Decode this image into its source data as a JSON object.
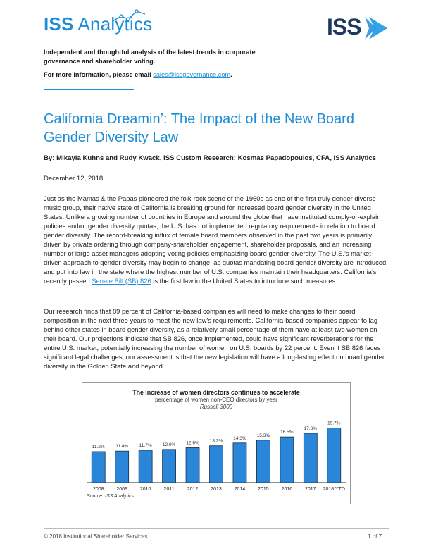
{
  "header": {
    "logo_prefix": "ISS",
    "logo_suffix": " Analytics",
    "brand_mark": "ISS",
    "intro": "Independent and thoughtful analysis of the latest trends in corporate governance and shareholder voting.",
    "info_prefix": "For more information, please email ",
    "info_email": "sales@issgovernance.com",
    "info_suffix": ".",
    "colors": {
      "accent": "#1f8dd6",
      "brand_dark": "#1d3a5e"
    }
  },
  "article": {
    "title": "California Dreamin’: The Impact of the New Board Gender Diversity Law",
    "byline": "By: Mikayla Kuhns and Rudy Kwack, ISS Custom Research; Kosmas Papadopoulos, CFA, ISS Analytics",
    "date": "December 12, 2018",
    "p1_a": "Just as the Mamas & the Papas pioneered the folk-rock scene of the 1960s as one of the first truly gender diverse music group, their native state of California is breaking ground for increased board gender diversity in the United States. Unlike a growing number of countries in Europe and around the globe that have instituted comply-or-explain policies and/or gender diversity quotas, the U.S. has not implemented regulatory requirements in relation to board gender diversity. The record-breaking influx of female board members observed in the past two years is primarily driven by private ordering through company-shareholder engagement, shareholder proposals, and an increasing number of large asset managers adopting voting policies emphasizing board gender diversity. The U.S.’s market-driven approach to gender diversity may begin to change, as quotas mandating board gender diversity are introduced and put into law in the state where the highest number of U.S. companies maintain their headquarters. California’s recently passed ",
    "p1_link": "Senate Bill (SB) 826",
    "p1_b": " is the first law in the United States to introduce such measures.",
    "p2": "Our research finds that 89 percent of California-based companies will need to make changes to their board composition in the next three years to meet the new law’s requirements. California-based companies appear to lag behind other states in board gender diversity, as a relatively small percentage of them have at least two women on their board. Our projections indicate that SB 826, once implemented, could have significant reverberations for the entire U.S. market, potentially increasing the number of women on U.S. boards by 22 percent. Even if SB 826 faces significant legal challenges, our assessment is that the new legislation will have a long-lasting effect on board gender diversity in the Golden State and beyond."
  },
  "chart_data": {
    "type": "bar",
    "title": "The increase of women directors continues to accelerate",
    "subtitle": "percentage of women non-CEO directors by year",
    "subtitle2": "Russell 3000",
    "source": "Source: ISS Analytics",
    "categories": [
      "2008",
      "2009",
      "2010",
      "2011",
      "2012",
      "2013",
      "2014",
      "2015",
      "2016",
      "2017",
      "2018 YTD"
    ],
    "values": [
      11.2,
      11.4,
      11.7,
      12.0,
      12.6,
      13.3,
      14.3,
      15.3,
      16.5,
      17.8,
      19.7
    ],
    "labels": [
      "11.2%",
      "11.4%",
      "11.7%",
      "12.0%",
      "12.6%",
      "13.3%",
      "14.3%",
      "15.3%",
      "16.5%",
      "17.8%",
      "19.7%"
    ],
    "ylim": [
      0,
      20
    ],
    "grid": false,
    "bar_color": "#2a86d8",
    "bar_edge": "#1a2f4d"
  },
  "footer": {
    "copyright": "© 2018 Institutional Shareholder Services",
    "page": "1 of 7"
  }
}
